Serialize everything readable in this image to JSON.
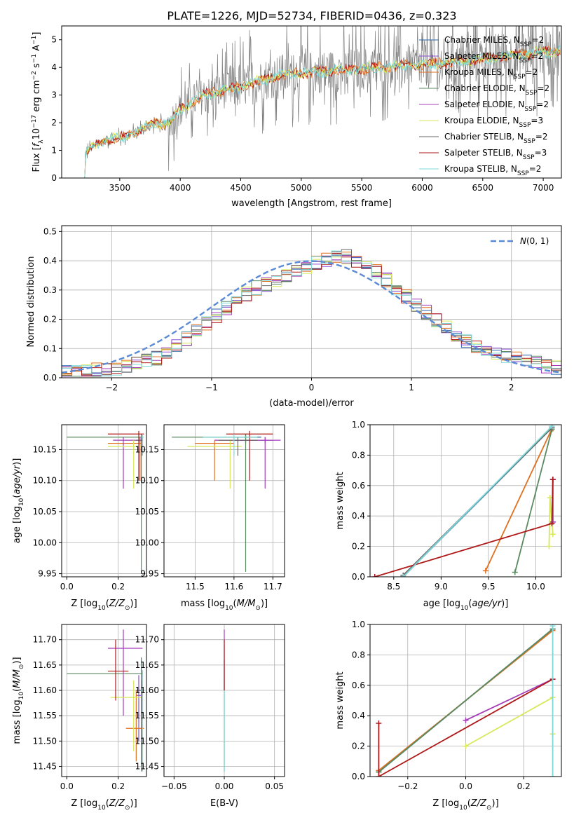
{
  "title": "PLATE=1226, MJD=52734, FIBERID=0436, z=0.323",
  "colors": {
    "Chabrier MILES": "#2a63a8",
    "Salpeter MILES": "#8a4fd0",
    "Kroupa MILES": "#e07020",
    "Chabrier ELODIE": "#5a8a60",
    "Salpeter ELODIE": "#a43cb8",
    "Kroupa ELODIE": "#d8e85a",
    "Chabrier STELIB": "#666666",
    "Salpeter STELIB": "#b01818",
    "Kroupa STELIB": "#7ed8d8",
    "data": "#808080",
    "normal": "#5b8ad6"
  },
  "chart_data": [
    {
      "id": "spectrum",
      "type": "line",
      "xlabel": "wavelength [Angstrom, rest frame]",
      "ylabel": "Flux [f_λ 10^-17 erg cm^-2 s^-1 A^-1]",
      "xlim": [
        3020,
        7150
      ],
      "ylim": [
        0,
        5.5
      ],
      "xticks": [
        3500,
        4000,
        4500,
        5000,
        5500,
        6000,
        6500,
        7000
      ],
      "yticks": [
        0,
        1,
        2,
        3,
        4,
        5
      ],
      "grid": false,
      "legend": "top-right",
      "data_trend": [
        [
          3200,
          0
        ],
        [
          3220,
          0.9
        ],
        [
          3300,
          1.2
        ],
        [
          3400,
          1.4
        ],
        [
          3500,
          1.45
        ],
        [
          3600,
          1.6
        ],
        [
          3700,
          1.8
        ],
        [
          3800,
          2.0
        ],
        [
          3900,
          1.9
        ],
        [
          4000,
          2.5
        ],
        [
          4200,
          3.0
        ],
        [
          4500,
          3.3
        ],
        [
          4800,
          3.7
        ],
        [
          5000,
          3.8
        ],
        [
          5500,
          3.95
        ],
        [
          6000,
          4.1
        ],
        [
          6500,
          4.3
        ],
        [
          7000,
          4.55
        ],
        [
          7130,
          4.6
        ]
      ],
      "series": [
        {
          "name": "Chabrier MILES, N_SSP=2"
        },
        {
          "name": "Salpeter MILES, N_SSP=2"
        },
        {
          "name": "Kroupa MILES, N_SSP=2"
        },
        {
          "name": "Chabrier ELODIE, N_SSP=2"
        },
        {
          "name": "Salpeter ELODIE, N_SSP=2"
        },
        {
          "name": "Kroupa ELODIE, N_SSP=3"
        },
        {
          "name": "Chabrier STELIB, N_SSP=2"
        },
        {
          "name": "Salpeter STELIB, N_SSP=3"
        },
        {
          "name": "Kroupa STELIB, N_SSP=2"
        }
      ]
    },
    {
      "id": "residuals",
      "type": "line",
      "xlabel": "(data-model)/error",
      "ylabel": "Normed distribution",
      "xlim": [
        -2.5,
        2.5
      ],
      "ylim": [
        0,
        0.52
      ],
      "xticks": [
        -2,
        -1,
        0,
        1,
        2
      ],
      "yticks": [
        0.0,
        0.1,
        0.2,
        0.3,
        0.4,
        0.5
      ],
      "grid": true,
      "legend": "top-right",
      "legend_label": "N(0,1)",
      "bin_width": 0.1,
      "hist_envelope": [
        [
          -2.5,
          0.02
        ],
        [
          -2.0,
          0.03
        ],
        [
          -1.5,
          0.07
        ],
        [
          -1.0,
          0.2
        ],
        [
          -0.6,
          0.3
        ],
        [
          -0.3,
          0.34
        ],
        [
          0.0,
          0.39
        ],
        [
          0.3,
          0.42
        ],
        [
          0.6,
          0.38
        ],
        [
          0.9,
          0.29
        ],
        [
          1.2,
          0.21
        ],
        [
          1.5,
          0.13
        ],
        [
          1.8,
          0.09
        ],
        [
          2.1,
          0.06
        ],
        [
          2.5,
          0.03
        ]
      ]
    },
    {
      "id": "z-age",
      "type": "scatter",
      "xlabel": "Z [log10(Z/Z⊙)]",
      "ylabel": "age  [log10(age/yr)]",
      "xlim": [
        -0.02,
        0.31
      ],
      "ylim": [
        9.945,
        10.19
      ],
      "xticks": [
        0.0,
        0.2
      ],
      "yticks": [
        9.95,
        10.0,
        10.05,
        10.1,
        10.15
      ],
      "grid": true,
      "points": [
        {
          "s": "Chabrier MILES",
          "x": 0.29,
          "y": 10.17,
          "xe": [
            0.285,
            0.295
          ],
          "ye": [
            10.14,
            10.175
          ]
        },
        {
          "s": "Salpeter MILES",
          "x": 0.285,
          "y": 10.165,
          "xe": [
            0.28,
            0.29
          ],
          "ye": [
            10.16,
            10.17
          ]
        },
        {
          "s": "Kroupa MILES",
          "x": 0.285,
          "y": 10.16,
          "xe": [
            0.16,
            0.29
          ],
          "ye": [
            10.1,
            10.165
          ]
        },
        {
          "s": "Chabrier ELODIE",
          "x": 0.29,
          "y": 10.17,
          "xe": [
            0.0,
            0.295
          ],
          "ye": [
            9.953,
            10.175
          ]
        },
        {
          "s": "Salpeter ELODIE",
          "x": 0.22,
          "y": 10.165,
          "xe": [
            0.18,
            0.295
          ],
          "ye": [
            10.087,
            10.17
          ]
        },
        {
          "s": "Kroupa ELODIE",
          "x": 0.26,
          "y": 10.155,
          "xe": [
            0.16,
            0.29
          ],
          "ye": [
            10.087,
            10.165
          ]
        },
        {
          "s": "Chabrier STELIB",
          "x": 0.29,
          "y": 10.165,
          "xe": [
            0.27,
            0.295
          ],
          "ye": [
            10.14,
            10.17
          ]
        },
        {
          "s": "Salpeter STELIB",
          "x": 0.28,
          "y": 10.175,
          "xe": [
            0.16,
            0.3
          ],
          "ye": [
            10.1,
            10.18
          ]
        },
        {
          "s": "Kroupa STELIB",
          "x": 0.295,
          "y": 10.17,
          "xe": [
            0.29,
            0.3
          ],
          "ye": [
            10.14,
            10.175
          ]
        }
      ]
    },
    {
      "id": "mass-age",
      "type": "scatter",
      "xlabel": "mass [log10(M/M⊙)]",
      "ylabel": "",
      "xlim": [
        11.42,
        11.73
      ],
      "ylim": [
        9.945,
        10.19
      ],
      "xticks": [
        11.5,
        11.6,
        11.7
      ],
      "yticks": [
        9.95,
        10.0,
        10.05,
        10.1,
        10.15
      ],
      "grid": true,
      "points": [
        {
          "s": "Chabrier MILES",
          "x": 11.63,
          "y": 10.17,
          "xe": [
            11.6,
            11.67
          ],
          "ye": [
            10.16,
            10.175
          ]
        },
        {
          "s": "Salpeter MILES",
          "x": 11.68,
          "y": 10.165,
          "xe": [
            11.6,
            11.7
          ],
          "ye": [
            10.16,
            10.17
          ]
        },
        {
          "s": "Kroupa MILES",
          "x": 11.55,
          "y": 10.16,
          "xe": [
            11.5,
            11.6
          ],
          "ye": [
            10.1,
            10.165
          ]
        },
        {
          "s": "Chabrier ELODIE",
          "x": 11.63,
          "y": 10.17,
          "xe": [
            11.44,
            11.66
          ],
          "ye": [
            9.953,
            10.175
          ]
        },
        {
          "s": "Salpeter ELODIE",
          "x": 11.68,
          "y": 10.165,
          "xe": [
            11.55,
            11.72
          ],
          "ye": [
            10.087,
            10.17
          ]
        },
        {
          "s": "Kroupa ELODIE",
          "x": 11.59,
          "y": 10.155,
          "xe": [
            11.48,
            11.62
          ],
          "ye": [
            10.087,
            10.165
          ]
        },
        {
          "s": "Chabrier STELIB",
          "x": 11.61,
          "y": 10.165,
          "xe": [
            11.56,
            11.66
          ],
          "ye": [
            10.14,
            10.17
          ]
        },
        {
          "s": "Salpeter STELIB",
          "x": 11.64,
          "y": 10.175,
          "xe": [
            11.58,
            11.7
          ],
          "ye": [
            10.1,
            10.18
          ]
        },
        {
          "s": "Kroupa STELIB",
          "x": 11.6,
          "y": 10.17,
          "xe": [
            11.52,
            11.66
          ],
          "ye": [
            10.14,
            10.175
          ]
        }
      ]
    },
    {
      "id": "age-weight",
      "type": "line",
      "xlabel": "age  [log10(age/yr)]",
      "ylabel": "mass weight",
      "xlim": [
        8.25,
        10.27
      ],
      "ylim": [
        0,
        1
      ],
      "xticks": [
        8.5,
        9.0,
        9.5,
        10.0
      ],
      "yticks": [
        0.0,
        0.2,
        0.4,
        0.6,
        0.8,
        1.0
      ],
      "grid": true,
      "series": [
        {
          "s": "Chabrier MILES",
          "points": [
            [
              8.6,
              0.0
            ],
            [
              10.17,
              0.98
            ]
          ]
        },
        {
          "s": "Salpeter MILES",
          "points": [
            [
              10.18,
              0.36
            ],
            [
              10.18,
              0.64
            ]
          ]
        },
        {
          "s": "Kroupa MILES",
          "points": [
            [
              9.47,
              0.04
            ],
            [
              10.16,
              0.96
            ]
          ]
        },
        {
          "s": "Chabrier ELODIE",
          "points": [
            [
              9.78,
              0.03
            ],
            [
              10.17,
              0.97
            ]
          ]
        },
        {
          "s": "Salpeter ELODIE",
          "points": [
            [
              10.18,
              0.36
            ],
            [
              10.18,
              0.64
            ]
          ]
        },
        {
          "s": "Kroupa ELODIE",
          "points": [
            [
              10.14,
              0.2
            ],
            [
              10.15,
              0.52
            ],
            [
              10.18,
              0.28
            ]
          ]
        },
        {
          "s": "Chabrier STELIB",
          "points": [
            [
              8.6,
              0.01
            ],
            [
              10.17,
              0.98
            ]
          ]
        },
        {
          "s": "Salpeter STELIB",
          "points": [
            [
              8.3,
              0.0
            ],
            [
              10.17,
              0.35
            ],
            [
              10.18,
              0.64
            ]
          ]
        },
        {
          "s": "Kroupa STELIB",
          "points": [
            [
              8.6,
              0.0
            ],
            [
              10.17,
              0.99
            ]
          ]
        }
      ]
    },
    {
      "id": "z-mass",
      "type": "scatter",
      "xlabel": "Z [log10(Z/Z⊙)]",
      "ylabel": "mass [log10(M/M⊙)]",
      "xlim": [
        -0.02,
        0.31
      ],
      "ylim": [
        11.43,
        11.73
      ],
      "xticks": [
        0.0,
        0.2
      ],
      "yticks": [
        11.45,
        11.5,
        11.55,
        11.6,
        11.65,
        11.7
      ],
      "grid": true,
      "points": [
        {
          "s": "Chabrier MILES",
          "x": 0.29,
          "y": 11.6,
          "xe": [
            0.28,
            0.3
          ],
          "ye": [
            11.55,
            11.66
          ]
        },
        {
          "s": "Salpeter MILES",
          "x": 0.28,
          "y": 11.59,
          "xe": [
            0.27,
            0.29
          ],
          "ye": [
            11.5,
            11.63
          ]
        },
        {
          "s": "Kroupa MILES",
          "x": 0.27,
          "y": 11.525,
          "xe": [
            0.23,
            0.3
          ],
          "ye": [
            11.46,
            11.6
          ]
        },
        {
          "s": "Chabrier ELODIE",
          "x": 0.29,
          "y": 11.633,
          "xe": [
            0.0,
            0.295
          ],
          "ye": [
            11.44,
            11.665
          ]
        },
        {
          "s": "Salpeter ELODIE",
          "x": 0.22,
          "y": 11.683,
          "xe": [
            0.16,
            0.295
          ],
          "ye": [
            11.55,
            11.72
          ]
        },
        {
          "s": "Kroupa ELODIE",
          "x": 0.26,
          "y": 11.586,
          "xe": [
            0.17,
            0.29
          ],
          "ye": [
            11.48,
            11.62
          ]
        },
        {
          "s": "Chabrier STELIB",
          "x": 0.29,
          "y": 11.6,
          "xe": [
            0.27,
            0.3
          ],
          "ye": [
            11.45,
            11.62
          ]
        },
        {
          "s": "Salpeter STELIB",
          "x": 0.19,
          "y": 11.638,
          "xe": [
            0.16,
            0.24
          ],
          "ye": [
            11.58,
            11.7
          ]
        },
        {
          "s": "Kroupa STELIB",
          "x": 0.295,
          "y": 11.6,
          "xe": [
            0.29,
            0.3
          ],
          "ye": [
            11.44,
            11.64
          ]
        }
      ]
    },
    {
      "id": "ebv-mass",
      "type": "scatter",
      "xlabel": "E(B-V)",
      "ylabel": "",
      "xlim": [
        -0.06,
        0.06
      ],
      "ylim": [
        11.43,
        11.73
      ],
      "xticks": [
        -0.05,
        0.0,
        0.05
      ],
      "yticks": [
        11.45,
        11.5,
        11.55,
        11.6,
        11.65,
        11.7
      ],
      "grid": true,
      "points": [
        {
          "s": "Chabrier ELODIE",
          "x": 0.0,
          "y": 11.6,
          "ye": [
            11.44,
            11.66
          ]
        },
        {
          "s": "Salpeter ELODIE",
          "x": 0.0,
          "y": 11.68,
          "ye": [
            11.6,
            11.72
          ]
        },
        {
          "s": "Kroupa ELODIE",
          "x": 0.0,
          "y": 11.55,
          "ye": [
            11.45,
            11.53
          ]
        },
        {
          "s": "Kroupa STELIB",
          "x": 0.0,
          "y": 11.6,
          "ye": [
            11.44,
            11.62
          ]
        },
        {
          "s": "Salpeter STELIB",
          "x": 0.0,
          "y": 11.64,
          "ye": [
            11.6,
            11.7
          ]
        }
      ]
    },
    {
      "id": "z-weight",
      "type": "line",
      "xlabel": "Z [log10(Z/Z⊙)]",
      "ylabel": "mass weight",
      "xlim": [
        -0.33,
        0.33
      ],
      "ylim": [
        0,
        1
      ],
      "xticks": [
        -0.2,
        0.0,
        0.2
      ],
      "yticks": [
        0.0,
        0.2,
        0.4,
        0.6,
        0.8,
        1.0
      ],
      "grid": true,
      "series": [
        {
          "s": "Chabrier MILES",
          "points": [
            [
              -0.3,
              0.03
            ],
            [
              0.3,
              0.97
            ]
          ]
        },
        {
          "s": "Kroupa MILES",
          "points": [
            [
              -0.3,
              0.04
            ],
            [
              0.3,
              0.96
            ]
          ]
        },
        {
          "s": "Chabrier ELODIE",
          "points": [
            [
              -0.3,
              0.03
            ],
            [
              0.3,
              0.97
            ]
          ]
        },
        {
          "s": "Salpeter ELODIE",
          "points": [
            [
              0.0,
              0.37
            ],
            [
              0.3,
              0.64
            ]
          ]
        },
        {
          "s": "Kroupa ELODIE",
          "points": [
            [
              0.0,
              0.2
            ],
            [
              0.3,
              0.52
            ]
          ]
        },
        {
          "s": "Kroupa ELODIE",
          "points": [
            [
              0.3,
              0.28
            ],
            [
              0.3,
              0.28
            ]
          ]
        },
        {
          "s": "Salpeter STELIB",
          "points": [
            [
              -0.3,
              0.35
            ],
            [
              -0.3,
              0.0
            ],
            [
              0.3,
              0.64
            ]
          ]
        },
        {
          "s": "Kroupa STELIB",
          "points": [
            [
              0.3,
              0.0
            ],
            [
              0.3,
              0.99
            ]
          ]
        }
      ]
    }
  ]
}
